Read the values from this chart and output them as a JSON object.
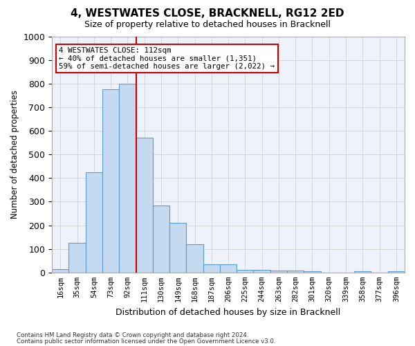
{
  "title": "4, WESTWATES CLOSE, BRACKNELL, RG12 2ED",
  "subtitle": "Size of property relative to detached houses in Bracknell",
  "xlabel": "Distribution of detached houses by size in Bracknell",
  "ylabel": "Number of detached properties",
  "bins": [
    "16sqm",
    "35sqm",
    "54sqm",
    "73sqm",
    "92sqm",
    "111sqm",
    "130sqm",
    "149sqm",
    "168sqm",
    "187sqm",
    "206sqm",
    "225sqm",
    "244sqm",
    "263sqm",
    "282sqm",
    "301sqm",
    "320sqm",
    "339sqm",
    "358sqm",
    "377sqm",
    "396sqm"
  ],
  "values": [
    15,
    125,
    425,
    775,
    800,
    570,
    285,
    210,
    120,
    35,
    35,
    10,
    10,
    8,
    8,
    5,
    0,
    0,
    5,
    0,
    5
  ],
  "bar_color": "#c5d9f1",
  "bar_edge_color": "#5b9bd5",
  "vline_x": 4.5,
  "vline_color": "#cc0000",
  "annotation_line1": "4 WESTWATES CLOSE: 112sqm",
  "annotation_line2": "← 40% of detached houses are smaller (1,351)",
  "annotation_line3": "59% of semi-detached houses are larger (2,022) →",
  "annotation_box_color": "#ffffff",
  "annotation_box_edgecolor": "#cc0000",
  "ylim": [
    0,
    1000
  ],
  "yticks": [
    0,
    100,
    200,
    300,
    400,
    500,
    600,
    700,
    800,
    900,
    1000
  ],
  "footer1": "Contains HM Land Registry data © Crown copyright and database right 2024.",
  "footer2": "Contains public sector information licensed under the Open Government Licence v3.0.",
  "grid_color": "#cccccc",
  "bg_color": "#eef2fa"
}
